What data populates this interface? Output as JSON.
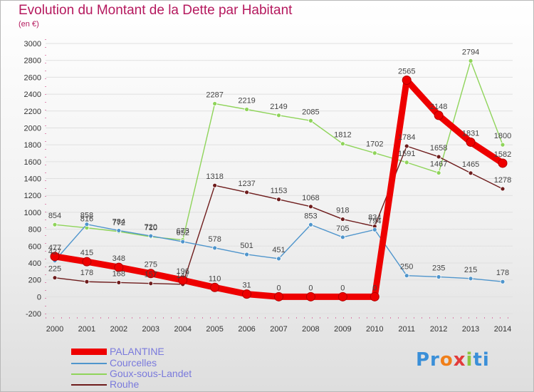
{
  "title": "Evolution du Montant de la Dette par Habitant",
  "subtitle": "(en €)",
  "logo": {
    "parts": [
      "Pr",
      "o",
      "x",
      "i",
      "ti"
    ],
    "colors": [
      "#3a8fd8",
      "#f07f1a",
      "#e23b3b",
      "#8cc63f",
      "#3a8fd8"
    ]
  },
  "colors": {
    "title": "#b5195e",
    "axis_text": "#333333",
    "label_text": "#444444",
    "grid": "#e0e0e0"
  },
  "chart_data": {
    "type": "line",
    "title": "Evolution du Montant de la Dette par Habitant",
    "subtitle": "(en €)",
    "x": [
      "2000",
      "2001",
      "2002",
      "2003",
      "2004",
      "2005",
      "2006",
      "2007",
      "2008",
      "2009",
      "2010",
      "2011",
      "2012",
      "2013",
      "2014"
    ],
    "ylim": [
      -200,
      3000
    ],
    "yticks": [
      -200,
      0,
      200,
      400,
      600,
      800,
      1000,
      1200,
      1400,
      1600,
      1800,
      2000,
      2200,
      2400,
      2600,
      2800,
      3000
    ],
    "grid": true,
    "legend": "bottom-left",
    "series": [
      {
        "name": "PALANTINE",
        "color": "#ee0000",
        "labelColor": "#cc0000",
        "values": [
          477,
          415,
          348,
          275,
          196,
          110,
          31,
          0,
          0,
          0,
          0,
          2565,
          2148,
          1831,
          1582
        ]
      },
      {
        "name": "Courcelles",
        "color": "#4f95cc",
        "labelColor": "#4f95cc",
        "values": [
          427,
          858,
          784,
          720,
          652,
          578,
          501,
          451,
          853,
          705,
          794,
          250,
          235,
          215,
          178
        ]
      },
      {
        "name": "Goux-sous-Landet",
        "color": "#8fd45a",
        "labelColor": "#6aaa40",
        "values": [
          854,
          816,
          772,
          710,
          673,
          2287,
          2219,
          2149,
          2085,
          1812,
          1702,
          1591,
          1467,
          2794,
          1800
        ]
      },
      {
        "name": "Rouhe",
        "color": "#6e1c1c",
        "labelColor": "#6e1c1c",
        "values": [
          225,
          178,
          168,
          157,
          147,
          1318,
          1237,
          1153,
          1068,
          918,
          834,
          1784,
          1658,
          1465,
          1278
        ]
      }
    ]
  }
}
